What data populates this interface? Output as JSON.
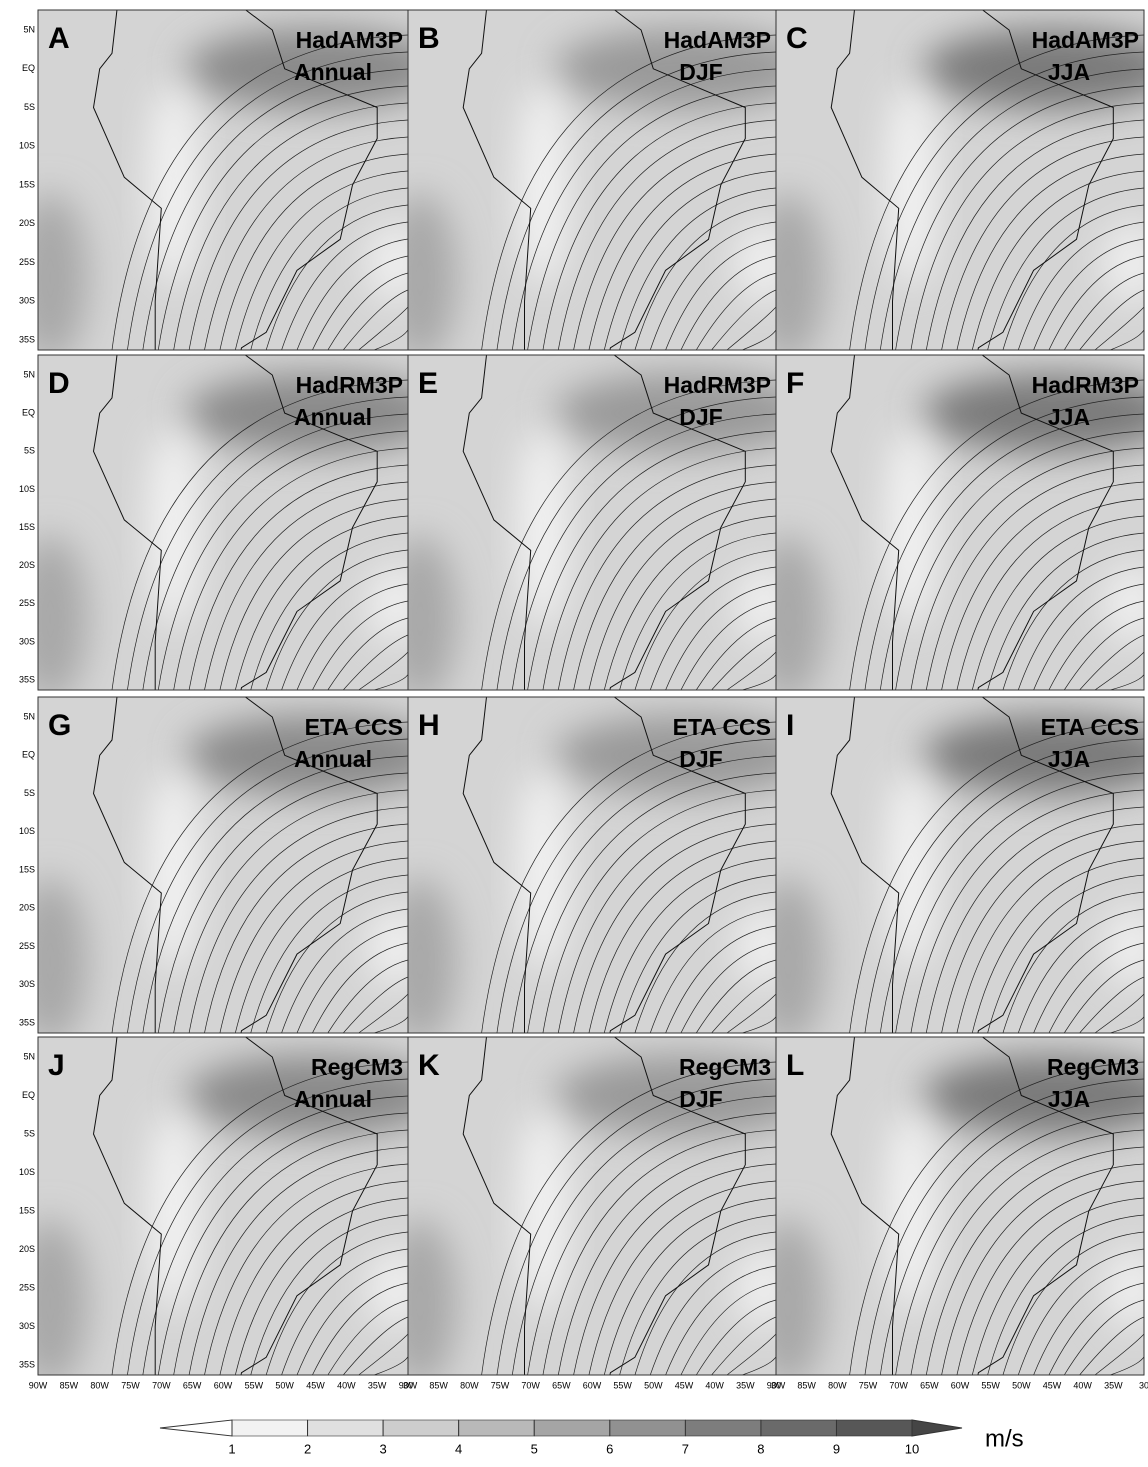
{
  "panels": [
    {
      "letter": "A",
      "model": "HadAM3P",
      "period": "Annual"
    },
    {
      "letter": "B",
      "model": "HadAM3P",
      "period": "DJF"
    },
    {
      "letter": "C",
      "model": "HadAM3P",
      "period": "JJA"
    },
    {
      "letter": "D",
      "model": "HadRM3P",
      "period": "Annual"
    },
    {
      "letter": "E",
      "model": "HadRM3P",
      "period": "DJF"
    },
    {
      "letter": "F",
      "model": "HadRM3P",
      "period": "JJA"
    },
    {
      "letter": "G",
      "model": "ETA CCS",
      "period": "Annual"
    },
    {
      "letter": "H",
      "model": "ETA CCS",
      "period": "DJF"
    },
    {
      "letter": "I",
      "model": "ETA CCS",
      "period": "JJA"
    },
    {
      "letter": "J",
      "model": "RegCM3",
      "period": "Annual"
    },
    {
      "letter": "K",
      "model": "RegCM3",
      "period": "DJF"
    },
    {
      "letter": "L",
      "model": "RegCM3",
      "period": "JJA"
    }
  ],
  "lat_labels": [
    "5N",
    "EQ",
    "5S",
    "10S",
    "15S",
    "20S",
    "25S",
    "30S",
    "35S"
  ],
  "lon_labels": [
    "90W",
    "85W",
    "80W",
    "75W",
    "70W",
    "65W",
    "60W",
    "55W",
    "50W",
    "45W",
    "40W",
    "35W",
    "30"
  ],
  "colorbar": {
    "ticks": [
      1,
      2,
      3,
      4,
      5,
      6,
      7,
      8,
      9,
      10
    ],
    "unit": "m/s",
    "colors": [
      "#ffffff",
      "#f2f2f2",
      "#e0e0e0",
      "#cdcdcd",
      "#b9b9b9",
      "#a5a5a5",
      "#919191",
      "#7d7d7d",
      "#6a6a6a",
      "#575757",
      "#454545"
    ]
  }
}
